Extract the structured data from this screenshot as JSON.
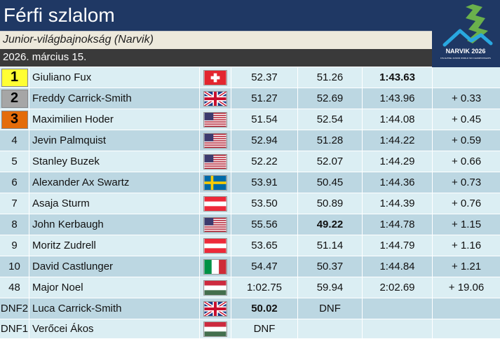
{
  "header": {
    "title": "Férfi szlalom",
    "subtitle": "Junior-világbajnokság (Narvik)",
    "date": "2026. március 15."
  },
  "logo": {
    "text_main": "NARVIK 2026",
    "text_small": "FIS ALPINE JUNIOR WORLD SKI CHAMPIONSHIPS",
    "colors": {
      "green": "#6ab04c",
      "cyan": "#29a8e0",
      "background": "#1f3864"
    }
  },
  "colors": {
    "title_bg": "#1f3864",
    "subtitle_bg": "#ede9dc",
    "date_bg": "#3a3a3a",
    "row_light": "#dbeef3",
    "row_dark": "#bcd7e2",
    "gold": "#ffff33",
    "silver": "#a6a6a6",
    "bronze": "#e46c0a"
  },
  "results": [
    {
      "rank": "1",
      "medal": "gold",
      "name": "Giuliano Fux",
      "flag": "SUI",
      "run1": "52.37",
      "run2": "51.26",
      "total": "1:43.63",
      "diff": "",
      "bold": [
        "total"
      ]
    },
    {
      "rank": "2",
      "medal": "silver",
      "name": "Freddy Carrick-Smith",
      "flag": "GBR",
      "run1": "51.27",
      "run2": "52.69",
      "total": "1:43.96",
      "diff": "+ 0.33",
      "bold": []
    },
    {
      "rank": "3",
      "medal": "bronze",
      "name": "Maximilien Hoder",
      "flag": "USA",
      "run1": "51.54",
      "run2": "52.54",
      "total": "1:44.08",
      "diff": "+ 0.45",
      "bold": []
    },
    {
      "rank": "4",
      "medal": "",
      "name": "Jevin Palmquist",
      "flag": "USA",
      "run1": "52.94",
      "run2": "51.28",
      "total": "1:44.22",
      "diff": "+ 0.59",
      "bold": []
    },
    {
      "rank": "5",
      "medal": "",
      "name": "Stanley Buzek",
      "flag": "USA",
      "run1": "52.22",
      "run2": "52.07",
      "total": "1:44.29",
      "diff": "+ 0.66",
      "bold": []
    },
    {
      "rank": "6",
      "medal": "",
      "name": "Alexander Ax Swartz",
      "flag": "SWE",
      "run1": "53.91",
      "run2": "50.45",
      "total": "1:44.36",
      "diff": "+ 0.73",
      "bold": []
    },
    {
      "rank": "7",
      "medal": "",
      "name": "Asaja Sturm",
      "flag": "AUT",
      "run1": "53.50",
      "run2": "50.89",
      "total": "1:44.39",
      "diff": "+ 0.76",
      "bold": []
    },
    {
      "rank": "8",
      "medal": "",
      "name": "John Kerbaugh",
      "flag": "USA",
      "run1": "55.56",
      "run2": "49.22",
      "total": "1:44.78",
      "diff": "+ 1.15",
      "bold": [
        "run2"
      ]
    },
    {
      "rank": "9",
      "medal": "",
      "name": "Moritz Zudrell",
      "flag": "AUT",
      "run1": "53.65",
      "run2": "51.14",
      "total": "1:44.79",
      "diff": "+ 1.16",
      "bold": []
    },
    {
      "rank": "10",
      "medal": "",
      "name": "David Castlunger",
      "flag": "ITA",
      "run1": "54.47",
      "run2": "50.37",
      "total": "1:44.84",
      "diff": "+ 1.21",
      "bold": []
    },
    {
      "rank": "48",
      "medal": "",
      "name": "Major Noel",
      "flag": "HUN",
      "run1": "1:02.75",
      "run2": "59.94",
      "total": "2:02.69",
      "diff": "+ 19.06",
      "bold": []
    },
    {
      "rank": "DNF2",
      "medal": "",
      "name": "Luca Carrick-Smith",
      "flag": "GBR",
      "run1": "50.02",
      "run2": "DNF",
      "total": "",
      "diff": "",
      "bold": [
        "run1"
      ]
    },
    {
      "rank": "DNF1",
      "medal": "",
      "name": "Verőcei Ákos",
      "flag": "HUN",
      "run1": "DNF",
      "run2": "",
      "total": "",
      "diff": "",
      "bold": []
    }
  ]
}
